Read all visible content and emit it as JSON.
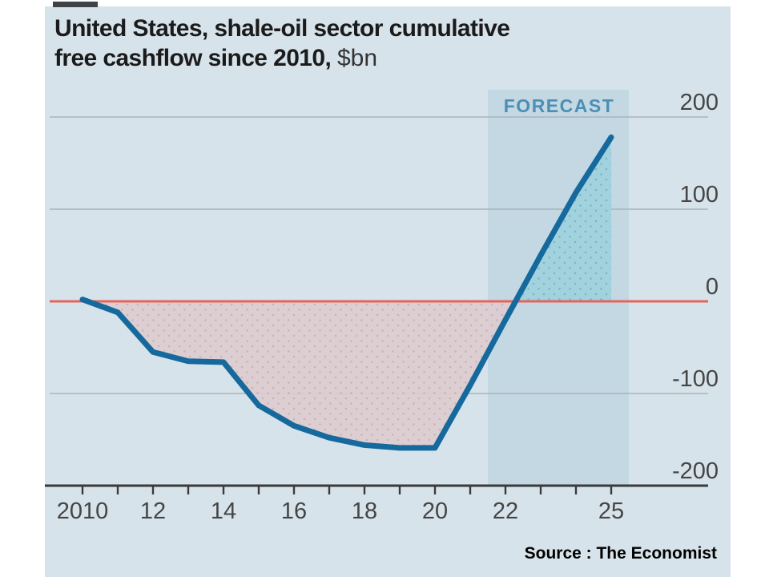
{
  "header": {
    "title_line1": "United States, shale-oil sector cumulative",
    "title_line2": "free cashflow since 2010,",
    "title_unit": "$bn"
  },
  "footer": {
    "source": "Source : The Economist"
  },
  "chart_data": {
    "type": "line",
    "title": "United States, shale-oil sector cumulative free cashflow since 2010",
    "unit": "$bn",
    "series_name": "Cumulative free cashflow",
    "x": [
      2010,
      2011,
      2012,
      2013,
      2014,
      2015,
      2016,
      2017,
      2018,
      2019,
      2020,
      2021,
      2022,
      2023,
      2024,
      2025
    ],
    "values": [
      2,
      -12,
      -55,
      -65,
      -66,
      -113,
      -135,
      -148,
      -156,
      -159,
      -159,
      -91,
      -20,
      50,
      118,
      178
    ],
    "forecast": {
      "label": "FORECAST",
      "start": 2021.5,
      "end": 2025.5
    },
    "ylim": [
      -200,
      230
    ],
    "yticks": [
      200,
      100,
      0,
      -100,
      -200
    ],
    "y_axis_side": "right",
    "grid": true,
    "xtick_labels": [
      {
        "year": 2010,
        "label": "2010"
      },
      {
        "year": 2012,
        "label": "12"
      },
      {
        "year": 2014,
        "label": "14"
      },
      {
        "year": 2016,
        "label": "16"
      },
      {
        "year": 2018,
        "label": "18"
      },
      {
        "year": 2020,
        "label": "20"
      },
      {
        "year": 2022,
        "label": "22"
      },
      {
        "year": 2025,
        "label": "25"
      }
    ],
    "colors": {
      "panel_background": "#d7e3ea",
      "forecast_band": "#c3d8e3",
      "line": "#16699c",
      "zero_line": "#e4655a",
      "gridline": "#aab4ba",
      "axis": "#3a3a3a",
      "negative_fill": "#ddccd0",
      "negative_dot": "#c4b0ba",
      "positive_fill": "#9fd2dc",
      "positive_dot": "#6fb3c6",
      "forecast_text": "#4b8fb5"
    }
  }
}
